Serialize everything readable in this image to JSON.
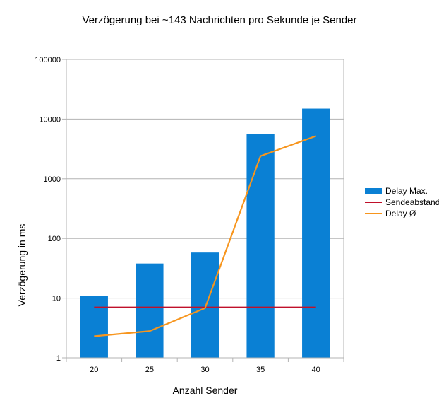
{
  "chart_data": {
    "type": "bar",
    "title": "Verzögerung bei ~143 Nachrichten pro Sekunde je Sender",
    "xlabel": "Anzahl Sender",
    "ylabel": "Verzögerung in ms",
    "y_scale": "log",
    "ylim": [
      1,
      100000
    ],
    "y_ticks": [
      "1",
      "10",
      "100",
      "1000",
      "10000",
      "100000"
    ],
    "categories": [
      "20",
      "25",
      "30",
      "35",
      "40"
    ],
    "grid": "horizontal",
    "legend_position": "right",
    "series": [
      {
        "name": "Delay Max.",
        "type": "bar",
        "color": "#0a80d4",
        "values": [
          11,
          38,
          58,
          5600,
          15000
        ]
      },
      {
        "name": "Sendeabstand",
        "type": "line",
        "color": "#c0102a",
        "values": [
          7,
          7,
          7,
          7,
          7
        ]
      },
      {
        "name": "Delay Ø",
        "type": "line",
        "color": "#f7951d",
        "values": [
          2.3,
          2.8,
          6.8,
          2400,
          5200
        ]
      }
    ]
  }
}
